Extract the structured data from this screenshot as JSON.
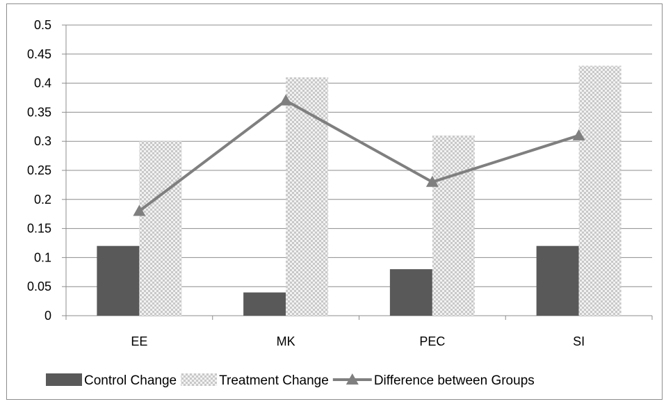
{
  "chart_data": {
    "type": "bar",
    "categories": [
      "EE",
      "MK",
      "PEC",
      "SI"
    ],
    "series": [
      {
        "name": "Control Change",
        "kind": "bar",
        "pattern": "solid",
        "color": "#595959",
        "values": [
          0.12,
          0.04,
          0.08,
          0.12
        ]
      },
      {
        "name": "Treatment Change",
        "kind": "bar",
        "pattern": "checkerboard",
        "color": "#c8c8c8",
        "values": [
          0.3,
          0.41,
          0.31,
          0.43
        ]
      },
      {
        "name": "Difference between Groups",
        "kind": "line",
        "marker": "triangle",
        "color": "#7f7f7f",
        "values": [
          0.18,
          0.37,
          0.23,
          0.31
        ]
      }
    ],
    "title": "",
    "xlabel": "",
    "ylabel": "",
    "ylim": [
      0,
      0.5
    ],
    "yticks": [
      "0",
      "0.05",
      "0.1",
      "0.15",
      "0.2",
      "0.25",
      "0.3",
      "0.35",
      "0.4",
      "0.45",
      "0.5"
    ],
    "grid": true,
    "legend_position": "bottom"
  }
}
